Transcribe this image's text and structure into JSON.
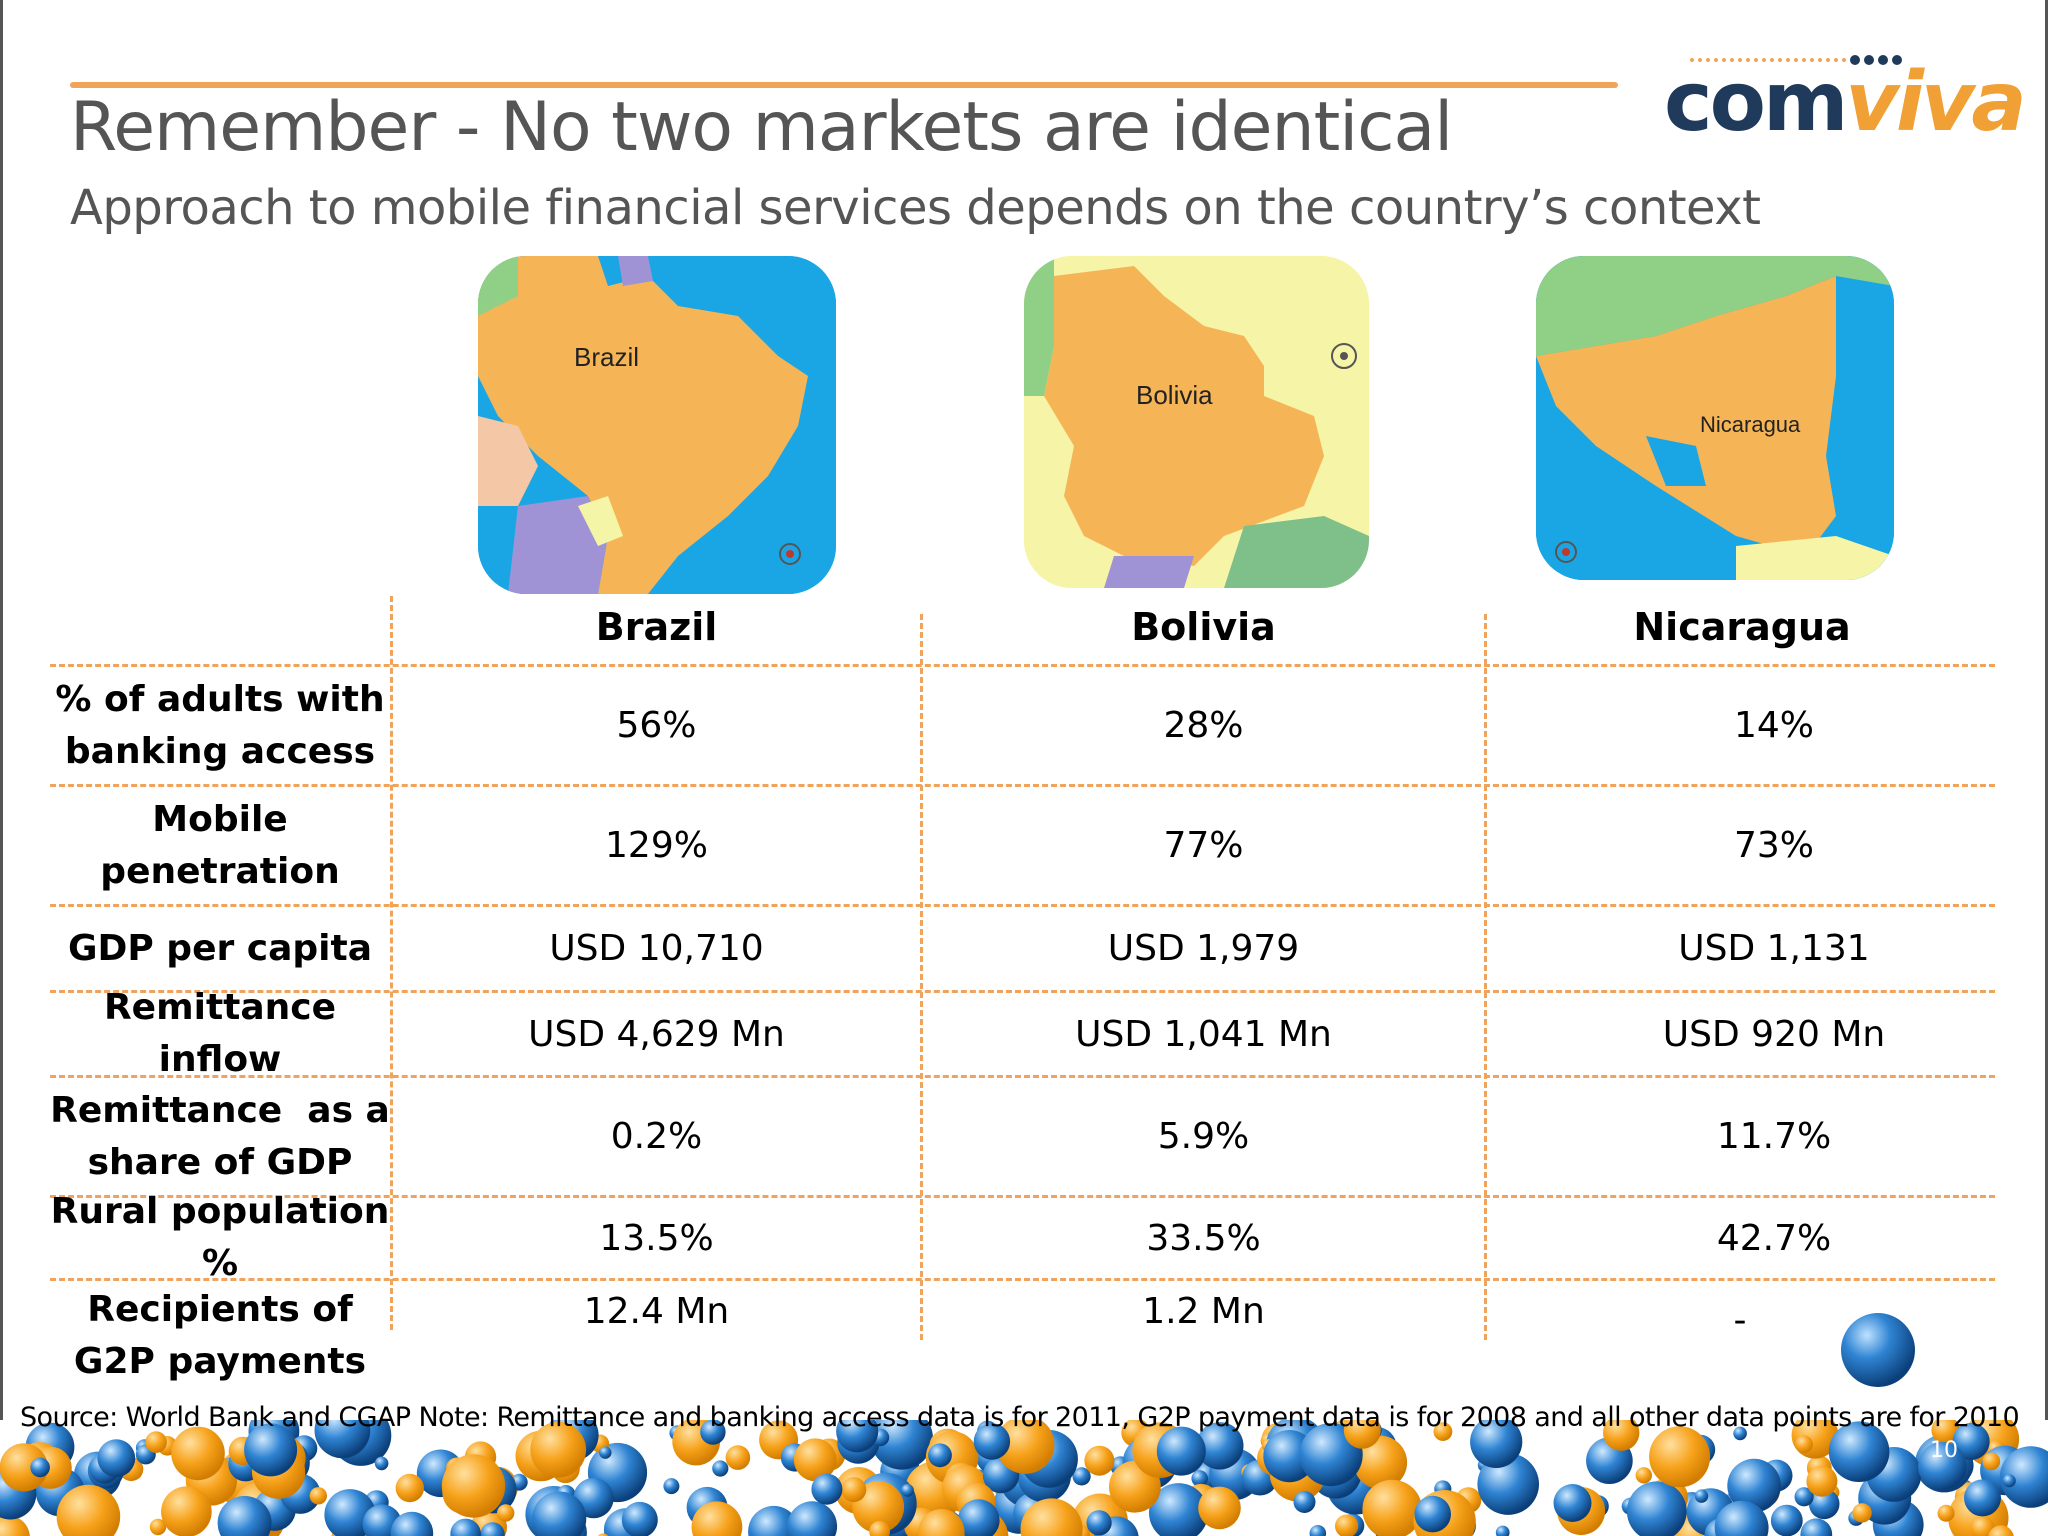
{
  "slide": {
    "title": "Remember - No two markets are identical",
    "subtitle": "Approach to mobile financial services depends on the country’s context",
    "logo": {
      "com": "com",
      "viva": "viva",
      "colors": {
        "com": "#1f3a5a",
        "viva": "#f0a035"
      }
    },
    "page_number": "10"
  },
  "maps": [
    {
      "label": "Brazil",
      "icon": "brazil-map"
    },
    {
      "label": "Bolivia",
      "icon": "bolivia-map"
    },
    {
      "label": "Nicaragua",
      "icon": "nicaragua-map"
    }
  ],
  "table": {
    "columns": [
      "Brazil",
      "Bolivia",
      "Nicaragua"
    ],
    "rows": [
      {
        "label_lines": [
          "% of adults with",
          "banking access"
        ],
        "values": [
          "56%",
          "28%",
          "14%"
        ]
      },
      {
        "label_lines": [
          "Mobile",
          "penetration"
        ],
        "values": [
          "129%",
          "77%",
          "73%"
        ]
      },
      {
        "label_lines": [
          "GDP per capita"
        ],
        "values": [
          "USD 10,710",
          "USD 1,979",
          "USD 1,131"
        ]
      },
      {
        "label_lines": [
          "Remittance inflow"
        ],
        "values": [
          "USD 4,629 Mn",
          "USD 1,041 Mn",
          "USD 920 Mn"
        ]
      },
      {
        "label_lines": [
          "Remittance  as a",
          "share of GDP"
        ],
        "values": [
          "0.2%",
          "5.9%",
          "11.7%"
        ]
      },
      {
        "label_lines": [
          "Rural population %"
        ],
        "values": [
          "13.5%",
          "33.5%",
          "42.7%"
        ]
      },
      {
        "label_lines": [
          "Recipients of",
          "G2P payments"
        ],
        "values": [
          "12.4 Mn",
          "1.2 Mn",
          "-"
        ]
      }
    ]
  },
  "footnote": "Source: World Bank and CGAP   Note: Remittance and banking access data is for 2011, G2P payment data is for 2008 and all other data points are for 2010",
  "colors": {
    "accent": "#f0a35a",
    "title": "#555555",
    "ocean": "#1aa6e4",
    "land": "#f5b556"
  }
}
